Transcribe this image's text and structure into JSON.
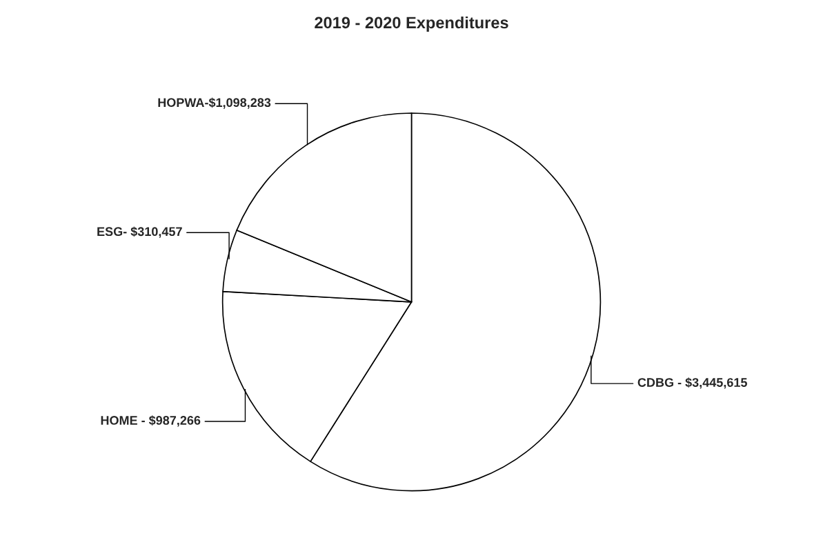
{
  "chart_data": {
    "type": "pie",
    "title": "2019 - 2020 Expenditures",
    "categories": [
      "CDBG - ",
      "HOME - ",
      "ESG- ",
      "HOPWA-"
    ],
    "values": [
      3445615,
      987266,
      310457,
      1098283
    ],
    "value_labels": [
      "$3,445,615",
      "$987,266",
      "$310,457",
      "$1,098,283"
    ],
    "colors": [
      "#ffffff",
      "#ffffff",
      "#ffffff",
      "#ffffff"
    ],
    "legend": false
  }
}
